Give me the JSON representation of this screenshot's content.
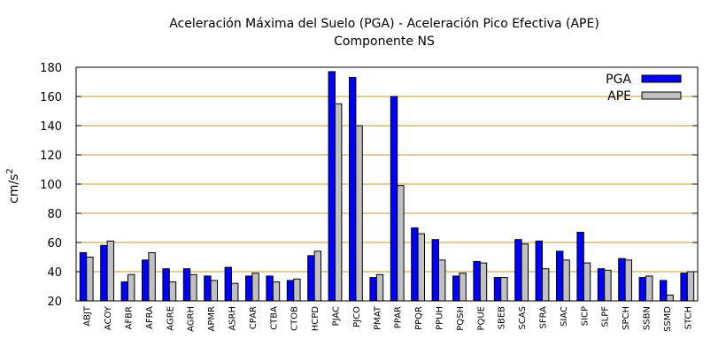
{
  "chart_data": {
    "type": "bar",
    "title_line1": "Aceleración Máxima del Suelo (PGA) -  Aceleración Pico Efectiva (APE)",
    "title_line2": "Componente NS",
    "ylabel_main": "cm/s",
    "ylabel_sup": "2",
    "xlabel": "",
    "ylim": [
      20,
      180
    ],
    "yticks": [
      20,
      40,
      60,
      80,
      100,
      120,
      140,
      160,
      180
    ],
    "grid": true,
    "legend_position": "top-right",
    "categories": [
      "ABJT",
      "ACOY",
      "AFBR",
      "AFRA",
      "AGRE",
      "AGRH",
      "APMR",
      "ASRH",
      "CPAR",
      "CTBA",
      "CTOB",
      "HCPD",
      "PJAC",
      "PJCO",
      "PMAT",
      "PPAR",
      "PPQR",
      "PPUH",
      "PQSH",
      "PQUE",
      "SBEB",
      "SCAS",
      "SFRA",
      "SIAC",
      "SICP",
      "SLPF",
      "SPCH",
      "SSBN",
      "SSMD",
      "STCH"
    ],
    "series": [
      {
        "name": "PGA",
        "color": "#0000ff",
        "values": [
          53,
          58,
          33,
          48,
          42,
          42,
          37,
          43,
          37,
          37,
          34,
          51,
          177,
          173,
          36,
          160,
          70,
          62,
          37,
          47,
          36,
          62,
          61,
          54,
          67,
          42,
          49,
          36,
          34,
          39
        ]
      },
      {
        "name": "APE",
        "color": "#c0c0c0",
        "values": [
          50,
          61,
          38,
          53,
          33,
          38,
          34,
          32,
          39,
          33,
          35,
          54,
          155,
          140,
          38,
          99,
          66,
          48,
          39,
          46,
          36,
          59,
          42,
          48,
          46,
          41,
          48,
          37,
          24,
          40
        ]
      }
    ]
  }
}
